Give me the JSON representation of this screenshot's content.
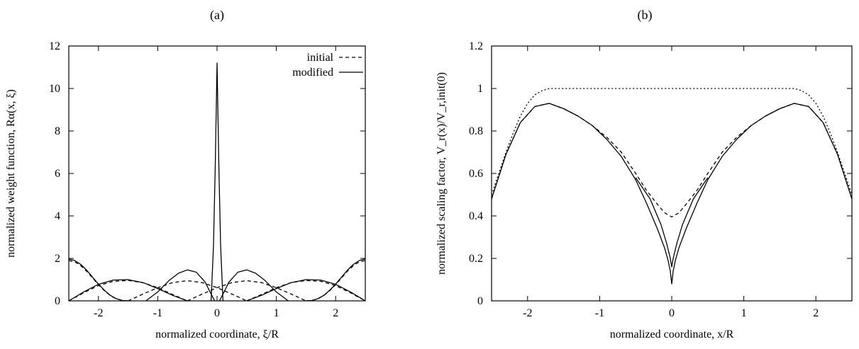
{
  "chart_data": [
    {
      "type": "line",
      "panel_label": "(a)",
      "xlabel": "normalized coordinate, ξ/R",
      "ylabel": "normalized weight function, Rα(x, ξ)",
      "xlim": [
        -2.5,
        2.5
      ],
      "ylim": [
        0,
        12
      ],
      "xticks": [
        -2,
        -1,
        0,
        1,
        2
      ],
      "xtick_labels": [
        "-2",
        "-1",
        "0",
        "1",
        "2"
      ],
      "yticks": [
        0,
        2,
        4,
        6,
        8,
        10,
        12
      ],
      "ytick_labels": [
        "0",
        "2",
        "4",
        "6",
        "8",
        "10",
        "12"
      ],
      "grid": false,
      "legend_position": "top-right",
      "series": [
        {
          "name": "initial",
          "style": "dashed",
          "curves": [
            {
              "x": [
                -2.5,
                -2.4,
                -2.3,
                -2.2,
                -2.1,
                -2.0,
                -1.9,
                -1.8,
                -1.7,
                -1.6,
                -1.5
              ],
              "y": [
                1.9,
                1.84,
                1.66,
                1.4,
                1.08,
                0.76,
                0.48,
                0.25,
                0.1,
                0.02,
                0.0
              ]
            },
            {
              "x": [
                -2.5,
                -2.25,
                -2.0,
                -1.75,
                -1.5,
                -1.25,
                -1.0,
                -0.75,
                -0.5
              ],
              "y": [
                0.0,
                0.38,
                0.72,
                0.92,
                0.96,
                0.86,
                0.62,
                0.3,
                0.0
              ]
            },
            {
              "x": [
                -1.5,
                -1.25,
                -1.0,
                -0.75,
                -0.5,
                -0.25,
                0.0,
                0.25,
                0.5
              ],
              "y": [
                0.0,
                0.32,
                0.62,
                0.86,
                0.95,
                0.86,
                0.62,
                0.32,
                0.0
              ]
            },
            {
              "x": [
                -0.5,
                -0.25,
                0.0,
                0.25,
                0.5,
                0.75,
                1.0,
                1.25,
                1.5
              ],
              "y": [
                0.0,
                0.32,
                0.62,
                0.86,
                0.95,
                0.86,
                0.62,
                0.32,
                0.0
              ]
            },
            {
              "x": [
                0.5,
                0.75,
                1.0,
                1.25,
                1.5,
                1.75,
                2.0,
                2.25,
                2.5
              ],
              "y": [
                0.0,
                0.3,
                0.62,
                0.86,
                0.96,
                0.92,
                0.72,
                0.38,
                0.0
              ]
            },
            {
              "x": [
                1.5,
                1.6,
                1.7,
                1.8,
                1.9,
                2.0,
                2.1,
                2.2,
                2.3,
                2.4,
                2.5
              ],
              "y": [
                0.0,
                0.02,
                0.1,
                0.25,
                0.48,
                0.76,
                1.08,
                1.4,
                1.66,
                1.84,
                1.9
              ]
            }
          ]
        },
        {
          "name": "modified",
          "style": "solid",
          "curves": [
            {
              "x": [
                -2.5,
                -2.4,
                -2.3,
                -2.2,
                -2.1,
                -2.0,
                -1.9,
                -1.8,
                -1.7,
                -1.6,
                -1.5
              ],
              "y": [
                1.97,
                1.9,
                1.72,
                1.45,
                1.12,
                0.79,
                0.5,
                0.26,
                0.1,
                0.02,
                0.0
              ]
            },
            {
              "x": [
                -2.5,
                -2.25,
                -2.0,
                -1.75,
                -1.5,
                -1.25,
                -1.0,
                -0.75,
                -0.5
              ],
              "y": [
                0.0,
                0.42,
                0.78,
                0.98,
                1.0,
                0.86,
                0.58,
                0.26,
                0.0
              ]
            },
            {
              "x": [
                -1.2,
                -1.0,
                -0.8,
                -0.65,
                -0.5,
                -0.35,
                -0.2,
                -0.1,
                -0.04
              ],
              "y": [
                0.0,
                0.42,
                0.98,
                1.3,
                1.46,
                1.35,
                0.88,
                0.32,
                0.0
              ]
            },
            {
              "x": [
                -0.1,
                -0.06,
                -0.03,
                -0.01,
                0.0,
                0.01,
                0.03,
                0.06,
                0.1
              ],
              "y": [
                0.0,
                2.6,
                6.4,
                9.6,
                11.2,
                9.6,
                6.4,
                2.6,
                0.0
              ]
            },
            {
              "x": [
                0.04,
                0.1,
                0.2,
                0.35,
                0.5,
                0.65,
                0.8,
                1.0,
                1.2
              ],
              "y": [
                0.0,
                0.32,
                0.88,
                1.35,
                1.46,
                1.3,
                0.98,
                0.42,
                0.0
              ]
            },
            {
              "x": [
                0.5,
                0.75,
                1.0,
                1.25,
                1.5,
                1.75,
                2.0,
                2.25,
                2.5
              ],
              "y": [
                0.0,
                0.26,
                0.58,
                0.86,
                1.0,
                0.98,
                0.78,
                0.42,
                0.0
              ]
            },
            {
              "x": [
                1.5,
                1.6,
                1.7,
                1.8,
                1.9,
                2.0,
                2.1,
                2.2,
                2.3,
                2.4,
                2.5
              ],
              "y": [
                0.0,
                0.02,
                0.1,
                0.26,
                0.5,
                0.79,
                1.12,
                1.45,
                1.72,
                1.9,
                1.97
              ]
            }
          ]
        }
      ]
    },
    {
      "type": "line",
      "panel_label": "(b)",
      "xlabel": "normalized coordinate, x/R",
      "ylabel": "normalized scaling factor, V_r(x)/V_r,init(0)",
      "xlim": [
        -2.5,
        2.5
      ],
      "ylim": [
        0,
        1.2
      ],
      "xticks": [
        -2,
        -1,
        0,
        1,
        2
      ],
      "xtick_labels": [
        "-2",
        "-1",
        "0",
        "1",
        "2"
      ],
      "yticks": [
        0,
        0.2,
        0.4,
        0.6,
        0.8,
        1.0,
        1.2
      ],
      "ytick_labels": [
        "0",
        "0.2",
        "0.4",
        "0.6",
        "0.8",
        "1",
        "1.2"
      ],
      "grid": false,
      "series": [
        {
          "style": "dotted",
          "curves": [
            {
              "x": [
                -2.5,
                -2.4,
                -2.3,
                -2.2,
                -2.1,
                -2.0,
                -1.9,
                -1.8,
                -1.7,
                -1.6,
                -1.5,
                -1.0,
                0.0,
                1.0,
                1.5,
                1.6,
                1.7,
                1.8,
                1.9,
                2.0,
                2.1,
                2.2,
                2.3,
                2.4,
                2.5
              ],
              "y": [
                0.5,
                0.6,
                0.7,
                0.79,
                0.87,
                0.93,
                0.97,
                0.99,
                1.0,
                1.0,
                1.0,
                1.0,
                1.0,
                1.0,
                1.0,
                1.0,
                1.0,
                0.99,
                0.97,
                0.93,
                0.87,
                0.79,
                0.7,
                0.6,
                0.5
              ]
            }
          ]
        },
        {
          "style": "dashed",
          "curves": [
            {
              "x": [
                -2.5,
                -2.3,
                -2.1,
                -1.9,
                -1.7,
                -1.5,
                -1.3,
                -1.1,
                -0.9,
                -0.7,
                -0.5,
                -0.35,
                -0.2,
                -0.1,
                0.0,
                0.1,
                0.2,
                0.35,
                0.5,
                0.7,
                0.9,
                1.1,
                1.3,
                1.5,
                1.7,
                1.9,
                2.1,
                2.3,
                2.5
              ],
              "y": [
                0.48,
                0.69,
                0.84,
                0.915,
                0.93,
                0.905,
                0.87,
                0.825,
                0.77,
                0.7,
                0.6,
                0.52,
                0.455,
                0.415,
                0.395,
                0.415,
                0.455,
                0.52,
                0.6,
                0.7,
                0.77,
                0.825,
                0.87,
                0.905,
                0.93,
                0.915,
                0.84,
                0.69,
                0.48
              ]
            }
          ]
        },
        {
          "style": "solid",
          "curves": [
            {
              "x": [
                -2.5,
                -2.3,
                -2.1,
                -1.9,
                -1.7,
                -1.5,
                -1.3,
                -1.1,
                -0.9,
                -0.7,
                -0.5,
                -0.35,
                -0.2,
                -0.1,
                -0.05,
                -0.02,
                0.0,
                0.02,
                0.05,
                0.1,
                0.2,
                0.35,
                0.5,
                0.7,
                0.9,
                1.1,
                1.3,
                1.5,
                1.7,
                1.9,
                2.1,
                2.3,
                2.5
              ],
              "y": [
                0.48,
                0.69,
                0.84,
                0.915,
                0.93,
                0.905,
                0.87,
                0.825,
                0.76,
                0.68,
                0.57,
                0.46,
                0.34,
                0.25,
                0.19,
                0.14,
                0.08,
                0.14,
                0.19,
                0.25,
                0.34,
                0.46,
                0.57,
                0.68,
                0.76,
                0.825,
                0.87,
                0.905,
                0.93,
                0.915,
                0.84,
                0.69,
                0.48
              ]
            },
            {
              "x": [
                -0.5,
                -0.3,
                -0.15,
                -0.07,
                -0.02,
                0.0,
                0.02,
                0.07,
                0.15,
                0.3,
                0.5
              ],
              "y": [
                0.58,
                0.48,
                0.36,
                0.27,
                0.2,
                0.16,
                0.2,
                0.27,
                0.36,
                0.48,
                0.58
              ]
            }
          ]
        }
      ]
    }
  ]
}
